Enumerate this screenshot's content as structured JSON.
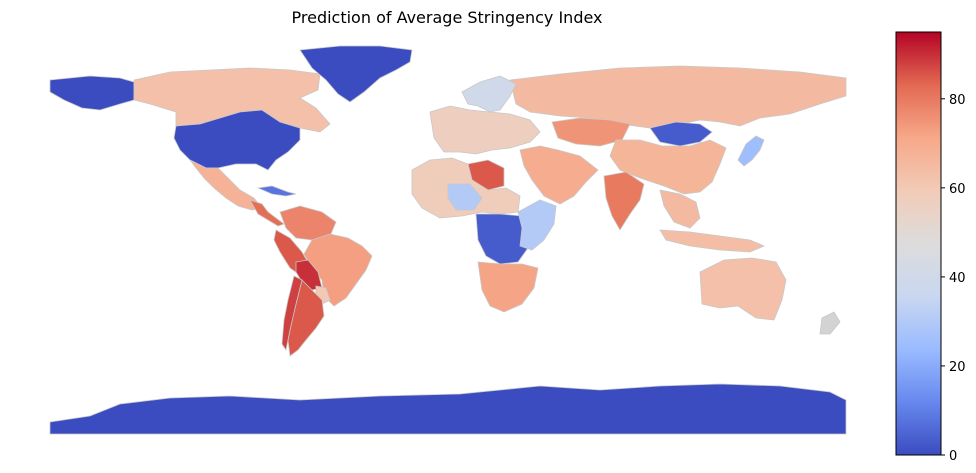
{
  "title": "Prediction of Average Stringency Index",
  "colorbar": {
    "min": 0,
    "max": 95,
    "ticks": [
      "0",
      "20",
      "40",
      "60",
      "80"
    ],
    "tick_values": [
      0,
      20,
      40,
      60,
      80
    ],
    "colormap": "coolwarm",
    "stops": [
      "#3b4cc0",
      "#6788ee",
      "#9abbff",
      "#c9d7f0",
      "#dddcdc",
      "#f2cbb7",
      "#f7a889",
      "#e26952",
      "#b40426"
    ]
  },
  "no_data_color": "#d3d3d3",
  "border_color": "#c8c8c8",
  "regions": [
    {
      "name": "Alaska",
      "value": 0
    },
    {
      "name": "Canada",
      "value": 63
    },
    {
      "name": "United States",
      "value": 0
    },
    {
      "name": "Greenland",
      "value": 0
    },
    {
      "name": "Mexico",
      "value": 68
    },
    {
      "name": "Central America",
      "value": 82
    },
    {
      "name": "Cuba",
      "value": 8
    },
    {
      "name": "Colombia / Venezuela",
      "value": 78
    },
    {
      "name": "Peru",
      "value": 85
    },
    {
      "name": "Brazil",
      "value": 73
    },
    {
      "name": "Bolivia",
      "value": 90
    },
    {
      "name": "Paraguay",
      "value": 60
    },
    {
      "name": "Argentina",
      "value": 85
    },
    {
      "name": "Chile",
      "value": 88
    },
    {
      "name": "Russia",
      "value": 65
    },
    {
      "name": "Scandinavia",
      "value": 40
    },
    {
      "name": "Europe",
      "value": 57
    },
    {
      "name": "Kazakhstan",
      "value": 75
    },
    {
      "name": "Mongolia",
      "value": 3
    },
    {
      "name": "China",
      "value": 67
    },
    {
      "name": "Japan",
      "value": 25
    },
    {
      "name": "India",
      "value": 80
    },
    {
      "name": "Middle East",
      "value": 70
    },
    {
      "name": "Libya",
      "value": 85
    },
    {
      "name": "North Africa",
      "value": 58
    },
    {
      "name": "Mali / Niger",
      "value": 30
    },
    {
      "name": "Central Africa",
      "value": 3
    },
    {
      "name": "East Africa",
      "value": 30
    },
    {
      "name": "Southern Africa",
      "value": 72
    },
    {
      "name": "Southeast Asia",
      "value": 65
    },
    {
      "name": "Indonesia",
      "value": 64
    },
    {
      "name": "Australia",
      "value": 63
    },
    {
      "name": "New Zealand",
      "value": null
    },
    {
      "name": "Antarctica",
      "value": 0
    }
  ]
}
